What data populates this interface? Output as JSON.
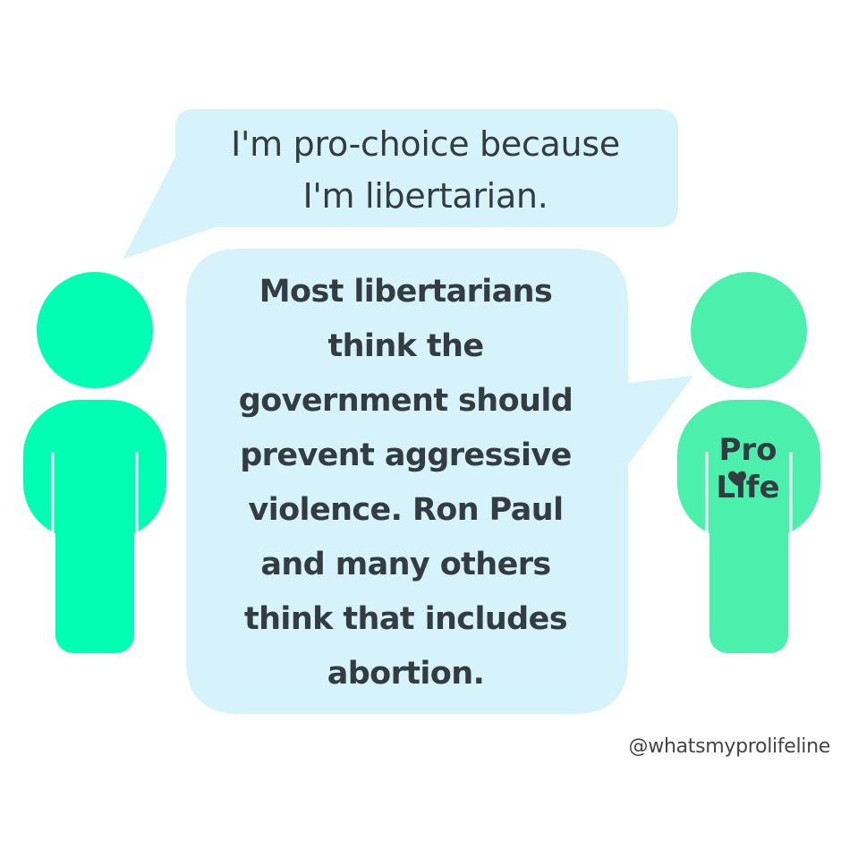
{
  "speech_bubble_1": {
    "lines": [
      "I'm pro-choice because",
      "I'm libertarian."
    ]
  },
  "speech_bubble_2": {
    "lines": [
      "Most libertarians",
      "think the",
      "government should",
      "prevent aggressive",
      "violence. Ron Paul",
      "and many others",
      "think that includes",
      "abortion."
    ]
  },
  "right_person": {
    "shirt_lines": [
      "Pro",
      "Life"
    ]
  },
  "credit": "@whatsmyprolifeline",
  "colors": {
    "left_person": "#00ffb3",
    "right_person": "#4cf0ad",
    "bubble": "#d6f3fc",
    "text": "#333c40"
  },
  "icons": [
    "person-icon",
    "heart-icon"
  ]
}
